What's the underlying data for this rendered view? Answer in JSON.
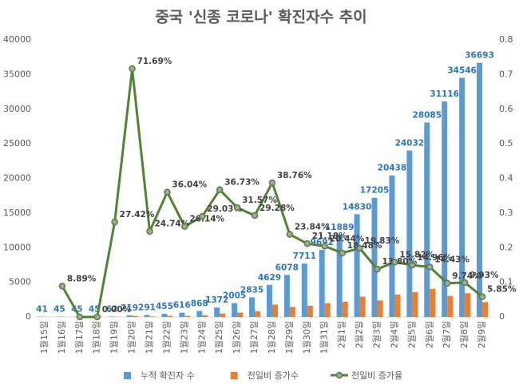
{
  "chart_data": {
    "type": "bar",
    "title": "중국 '신종 코로나' 확진자수 추이",
    "categories": [
      "1월15일",
      "1월16일",
      "1월17일",
      "1월18일",
      "1월19일",
      "1월20일",
      "1월21일",
      "1월22일",
      "1월23일",
      "1월24일",
      "1월25일",
      "1월26일",
      "1월27일",
      "1월28일",
      "1월29일",
      "1월30일",
      "1월31일",
      "2월1일",
      "2월2일",
      "2월3일",
      "2월4일",
      "2월5일",
      "2월6일",
      "2월7일",
      "2월8일",
      "2월9일"
    ],
    "series": [
      {
        "name": "누적 확진자 수",
        "color": "#5b9bd5",
        "type": "bar",
        "show_labels": true,
        "values": [
          41,
          45,
          45,
          45,
          62,
          219,
          291,
          455,
          616,
          868,
          1372,
          2005,
          2835,
          4629,
          6078,
          7711,
          9692,
          11889,
          14830,
          17205,
          20438,
          24032,
          28085,
          31116,
          34546,
          36693
        ]
      },
      {
        "name": "전일비 증가수",
        "color": "#ed7d31",
        "type": "bar",
        "values": [
          null,
          4,
          0,
          0,
          17,
          157,
          72,
          164,
          161,
          252,
          504,
          633,
          830,
          1794,
          1449,
          1633,
          1981,
          2197,
          2941,
          2375,
          3233,
          3594,
          4053,
          3031,
          3430,
          2147
        ]
      },
      {
        "name": "전일비 증가율",
        "color": "#548235",
        "type": "line",
        "axis": "y2",
        "values": [
          null,
          0.0889,
          0,
          0,
          0.2742,
          0.7169,
          0.2474,
          0.3604,
          0.2614,
          0.2903,
          0.3673,
          0.3157,
          0.2928,
          0.3876,
          0.2384,
          0.2118,
          0.2044,
          0.1848,
          0.1983,
          0.138,
          0.1582,
          0.1496,
          0.1443,
          0.0974,
          0.0993,
          0.0585
        ],
        "value_labels": [
          null,
          "8.89%",
          null,
          "0.00%",
          "27.42%",
          "71.69%",
          "24.74%",
          "36.04%",
          "26.14%",
          "29.03%",
          "36.73%",
          "31.57%",
          "29.28%",
          "38.76%",
          "23.84%",
          "21.18%",
          "20.44%",
          "18.48%",
          "19.83%",
          "13.80%",
          "15.82%",
          "14.96%",
          "14.43%",
          "9.74%",
          "9.93%",
          "5.85%"
        ]
      }
    ],
    "ylim": [
      0,
      40000
    ],
    "yticks": [
      0,
      5000,
      10000,
      15000,
      20000,
      25000,
      30000,
      35000,
      40000
    ],
    "y2lim": [
      0,
      0.8
    ],
    "y2ticks": [
      0,
      0.1,
      0.2,
      0.3,
      0.4,
      0.5,
      0.6,
      0.7,
      0.8
    ],
    "grid": false,
    "legend": "bottom"
  }
}
